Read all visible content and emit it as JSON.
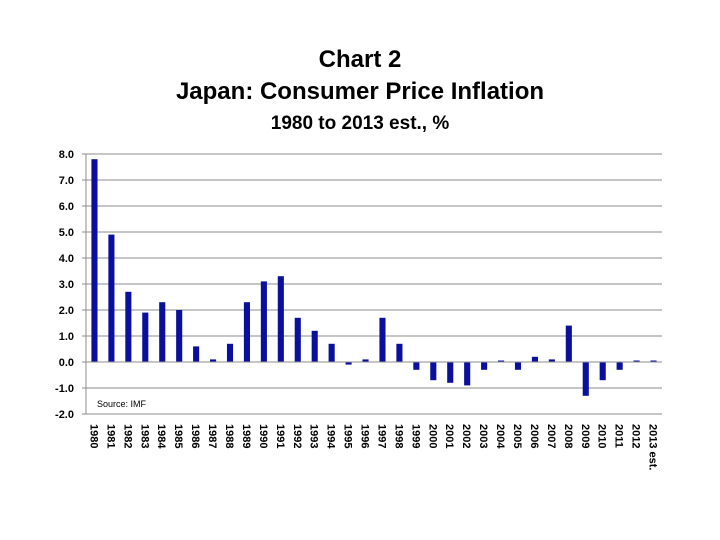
{
  "chart_data": {
    "type": "bar",
    "title": "Chart 2",
    "subtitle": "Japan: Consumer Price Inflation",
    "subtitle2": "1980 to 2013 est., %",
    "xlabel": "",
    "ylabel": "",
    "ylim": [
      -2.0,
      8.0
    ],
    "yticks": [
      "8.0",
      "7.0",
      "6.0",
      "5.0",
      "4.0",
      "3.0",
      "2.0",
      "1.0",
      "0.0",
      "-1.0",
      "-2.0"
    ],
    "grid": true,
    "bar_color": "#0a0f9e",
    "annotation": "Source: IMF",
    "categories": [
      "1980",
      "1981",
      "1982",
      "1983",
      "1984",
      "1985",
      "1986",
      "1987",
      "1988",
      "1989",
      "1990",
      "1991",
      "1992",
      "1993",
      "1994",
      "1995",
      "1996",
      "1997",
      "1998",
      "1999",
      "2000",
      "2001",
      "2002",
      "2003",
      "2004",
      "2005",
      "2006",
      "2007",
      "2008",
      "2009",
      "2010",
      "2011",
      "2012",
      "2013 est."
    ],
    "values": [
      7.8,
      4.9,
      2.7,
      1.9,
      2.3,
      2.0,
      0.6,
      0.1,
      0.7,
      2.3,
      3.1,
      3.3,
      1.7,
      1.2,
      0.7,
      -0.1,
      0.1,
      1.7,
      0.7,
      -0.3,
      -0.7,
      -0.8,
      -0.9,
      -0.3,
      0.0,
      -0.3,
      0.2,
      0.1,
      1.4,
      -1.3,
      -0.7,
      -0.3,
      0.0,
      0.0
    ]
  }
}
